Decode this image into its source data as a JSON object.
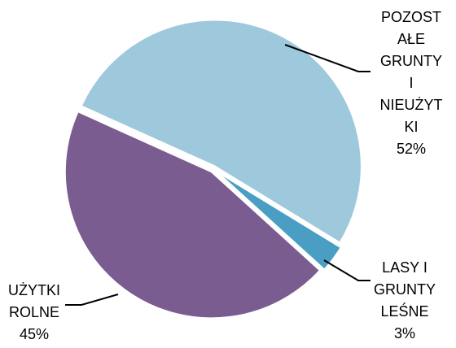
{
  "chart_data": {
    "type": "pie",
    "categories": [
      "POZOSTAŁE GRUNTY I NIEUŻYTKI",
      "LASY I GRUNTY LEŚNE",
      "UŻYTKI ROLNE"
    ],
    "values": [
      52,
      3,
      45
    ],
    "value_labels": [
      "52%",
      "3%",
      "45%"
    ],
    "colors": [
      "#9ec8dc",
      "#4a9ec4",
      "#7b5c91"
    ]
  }
}
